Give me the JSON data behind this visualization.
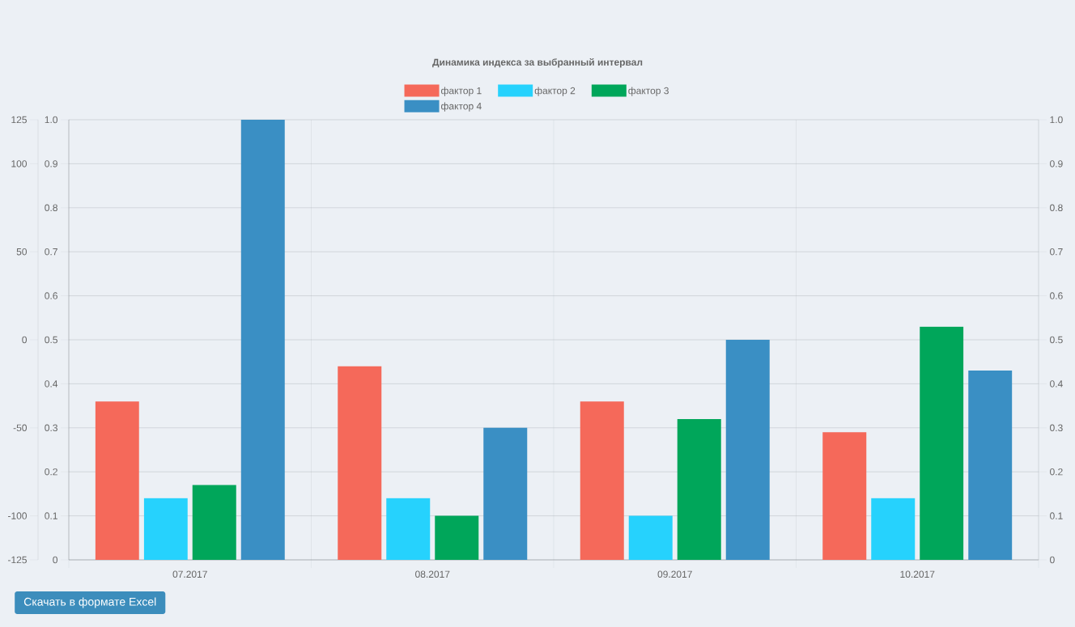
{
  "chart_data": {
    "type": "bar",
    "title": "Динамика индекса за выбранный интервал",
    "categories": [
      "07.2017",
      "08.2017",
      "09.2017",
      "10.2017"
    ],
    "series": [
      {
        "name": "фактор 1",
        "color": "#f5695a",
        "values": [
          0.36,
          0.44,
          0.36,
          0.29
        ]
      },
      {
        "name": "фактор 2",
        "color": "#26d2fd",
        "values": [
          0.14,
          0.14,
          0.1,
          0.14
        ]
      },
      {
        "name": "фактор 3",
        "color": "#00a65a",
        "values": [
          0.17,
          0.1,
          0.32,
          0.53
        ]
      },
      {
        "name": "фактор 4",
        "color": "#3a8fc4",
        "values": [
          1.0,
          0.3,
          0.5,
          0.43
        ]
      }
    ],
    "ylim": [
      0,
      1
    ],
    "yticks": [
      0,
      0.1,
      0.2,
      0.3,
      0.4,
      0.5,
      0.6,
      0.7,
      0.8,
      0.9,
      {
        "value": 1,
        "label": "1.0"
      }
    ],
    "y2lim": [
      0,
      1
    ],
    "y2ticks": [
      0,
      0.1,
      0.2,
      0.3,
      0.4,
      0.5,
      0.6,
      0.7,
      0.8,
      0.9,
      {
        "value": 1,
        "label": "1.0"
      }
    ],
    "y3lim": [
      -125,
      125
    ],
    "y3ticks": [
      -125,
      -100,
      -50,
      0,
      50,
      100,
      125
    ],
    "grid": true,
    "legend": "top",
    "annotations": [
      "Скачать в формате Excel"
    ]
  }
}
